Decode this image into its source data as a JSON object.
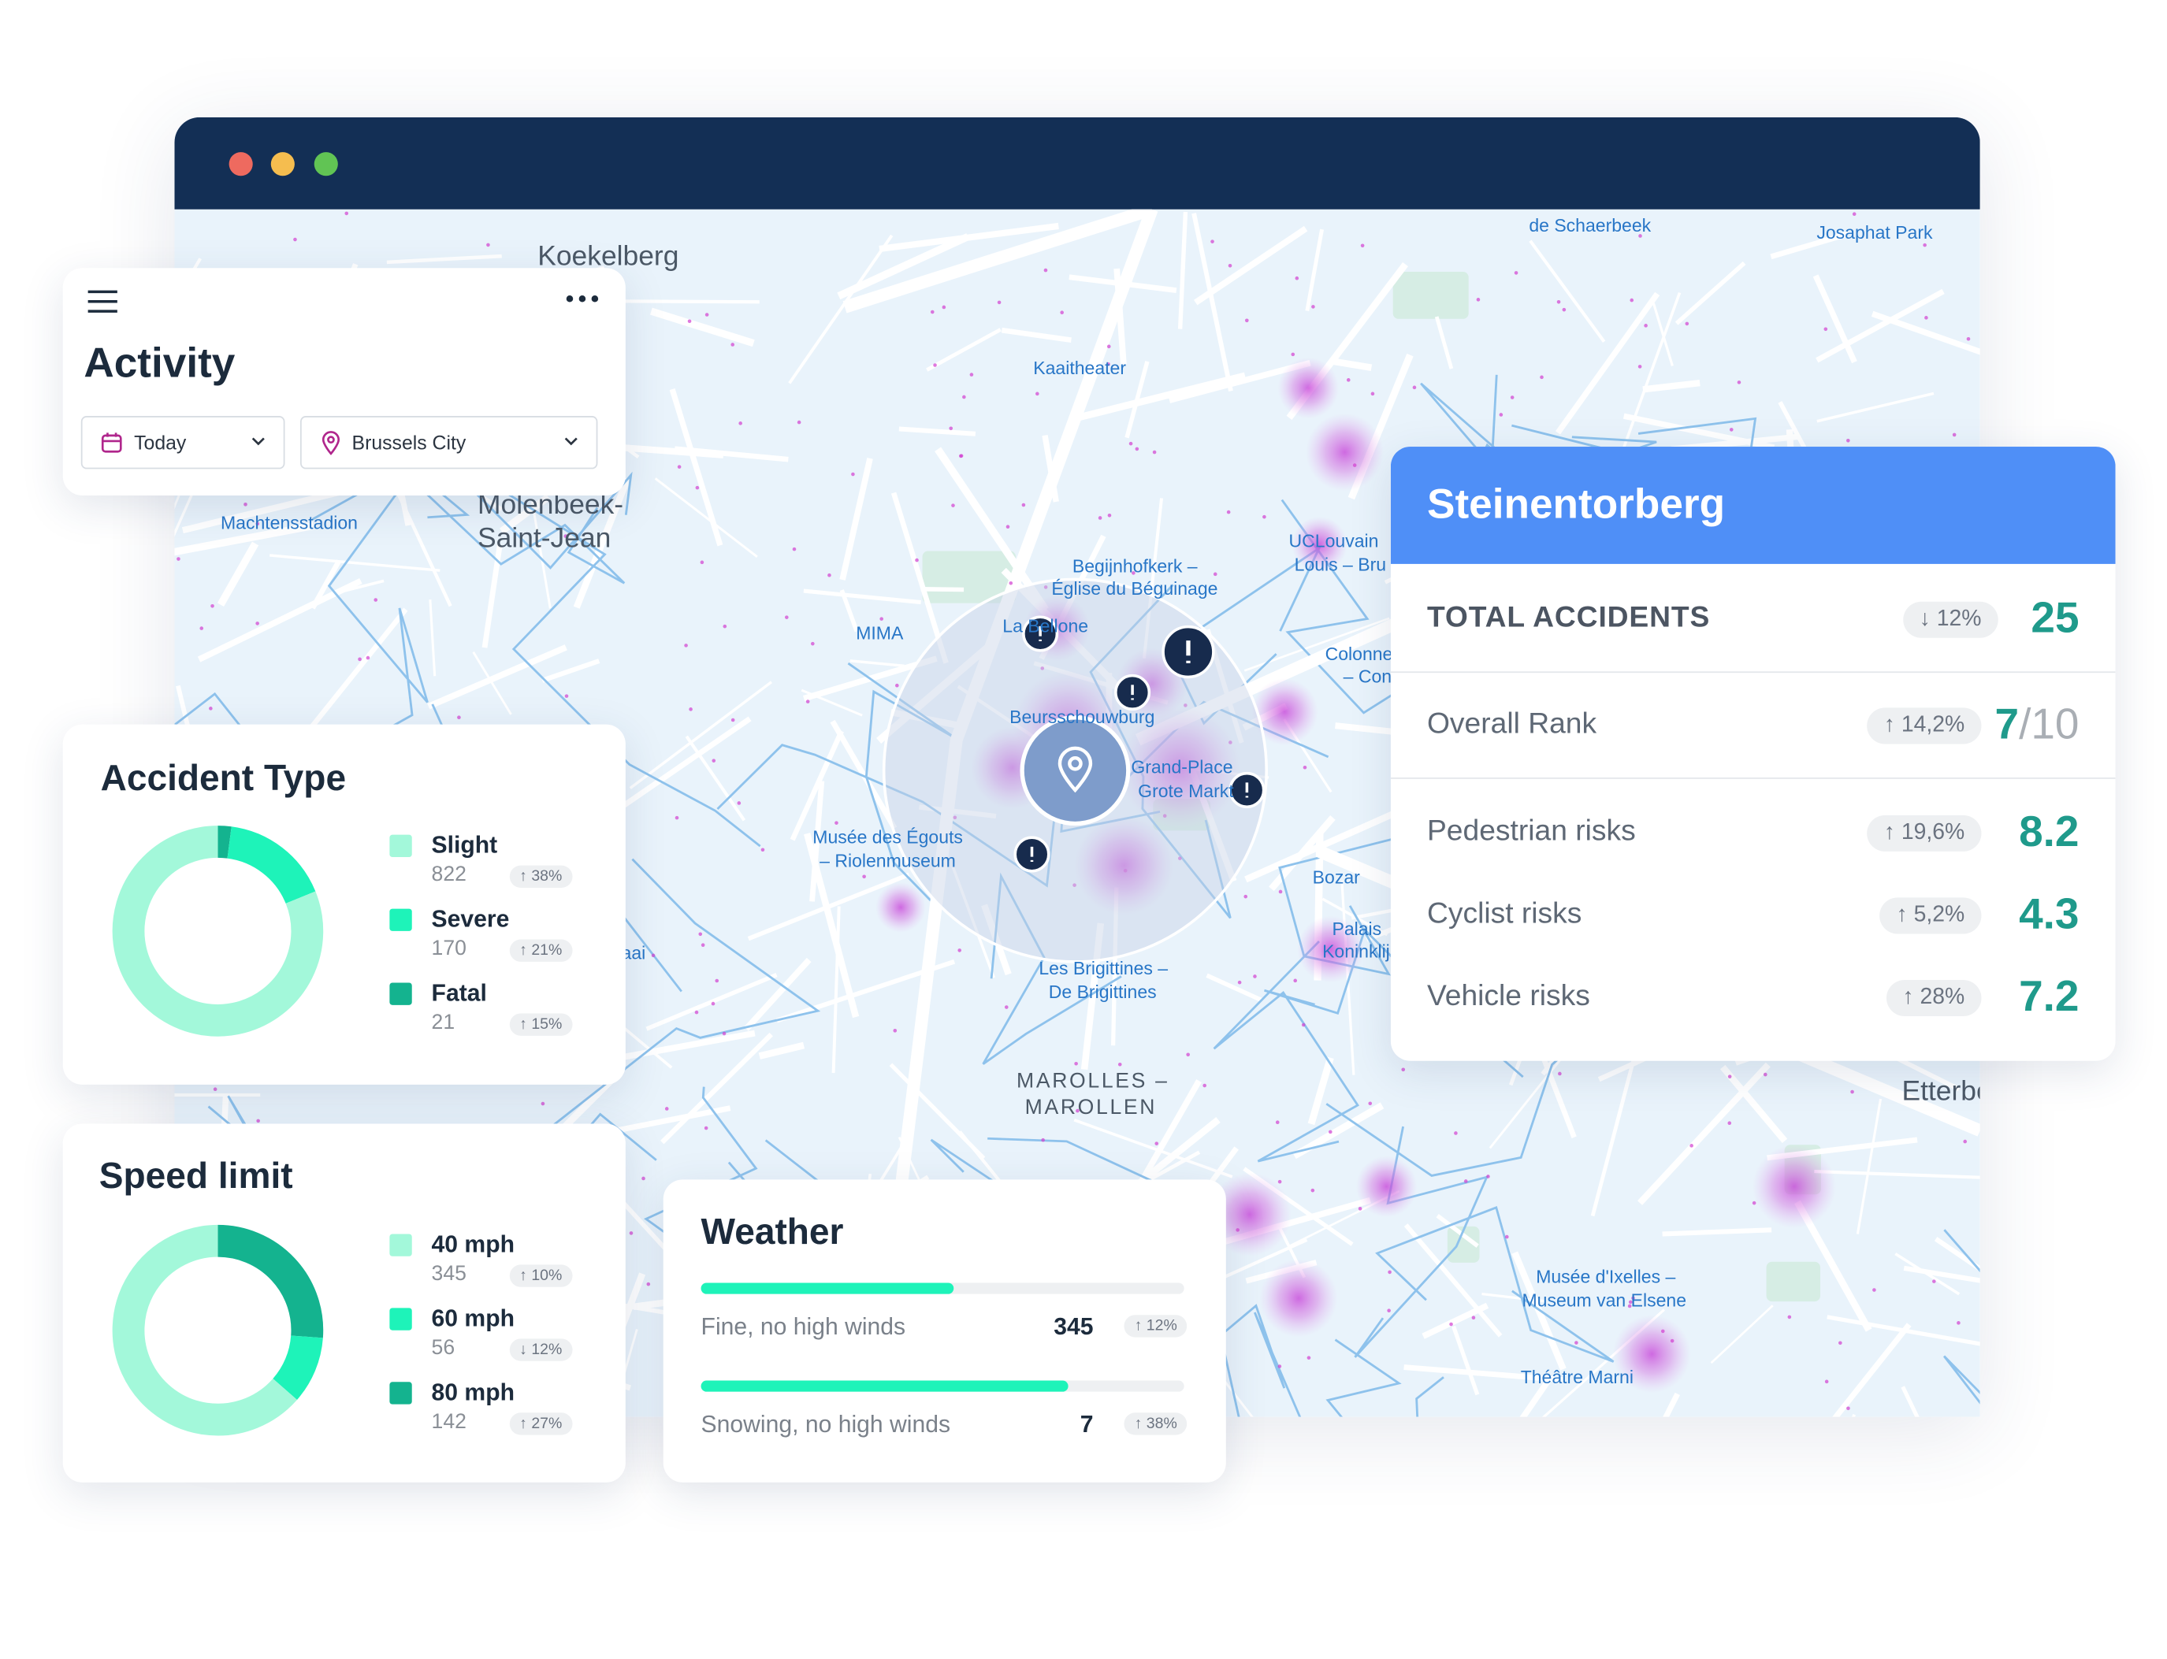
{
  "activity": {
    "title": "Activity",
    "filters": [
      "Today",
      "Brussels City"
    ]
  },
  "map_labels": [
    "Koekelberg",
    "Machtensstadion",
    "Molenbeek-",
    "Saint-Jean",
    "Kaaitheater",
    "de Schaerbeek",
    "Josaphat Park",
    "Begijnhofkerk –",
    "Église du Béguinage",
    "UCLouvain",
    "Louis – Bru",
    "MIMA",
    "La Bellone",
    "Beursschouwburg",
    "Colonne",
    "– Con",
    "Grand-Place",
    "Grote Markt",
    "Musée des Égouts",
    "– Riolenmuseum",
    "Bozar",
    "Palais",
    "Koninklijk",
    "Les Brigittines –",
    "De Brigittines",
    "MAROLLES –",
    "MAROLLEN",
    "Etterbeek",
    "Musée d'Ixelles –",
    "Museum van Elsene",
    "Théâtre Marni",
    "aai"
  ],
  "accident_type": {
    "title": "Accident Type",
    "type": "donut",
    "series": [
      {
        "name": "Slight",
        "value": 822,
        "change": "↑ 38%",
        "color": "#a3f8da"
      },
      {
        "name": "Severe",
        "value": 170,
        "change": "↑ 21%",
        "color": "#1ef3b9"
      },
      {
        "name": "Fatal",
        "value": 21,
        "change": "↑ 15%",
        "color": "#14b38f"
      }
    ]
  },
  "speed_limit": {
    "title": "Speed limit",
    "type": "donut",
    "series": [
      {
        "name": "40 mph",
        "value": 345,
        "change": "↑ 10%",
        "color": "#a3f8da"
      },
      {
        "name": "60 mph",
        "value": 56,
        "change": "↓ 12%",
        "color": "#1ef3b9"
      },
      {
        "name": "80 mph",
        "value": 142,
        "change": "↑ 27%",
        "color": "#14b38f"
      }
    ]
  },
  "weather": {
    "title": "Weather",
    "rows": [
      {
        "name": "Fine, no high winds",
        "value": 345,
        "change": "↑ 12%"
      },
      {
        "name": "Snowing, no high winds",
        "value": 7,
        "change": "↑ 38%"
      }
    ]
  },
  "location": {
    "name": "Steinentorberg",
    "rows": [
      {
        "name": "TOTAL ACCIDENTS",
        "change": "↓ 12%",
        "value": 25
      },
      {
        "name": "Overall Rank",
        "change": "↑ 14,2%",
        "value": 7,
        "suffix": "/10"
      },
      {
        "name": "Pedestrian risks",
        "change": "↑ 19,6%",
        "value": 8.2
      },
      {
        "name": "Cyclist risks",
        "change": "↑ 5,2%",
        "value": 4.3
      },
      {
        "name": "Vehicle risks",
        "change": "↑ 28%",
        "value": 7.2
      }
    ]
  }
}
